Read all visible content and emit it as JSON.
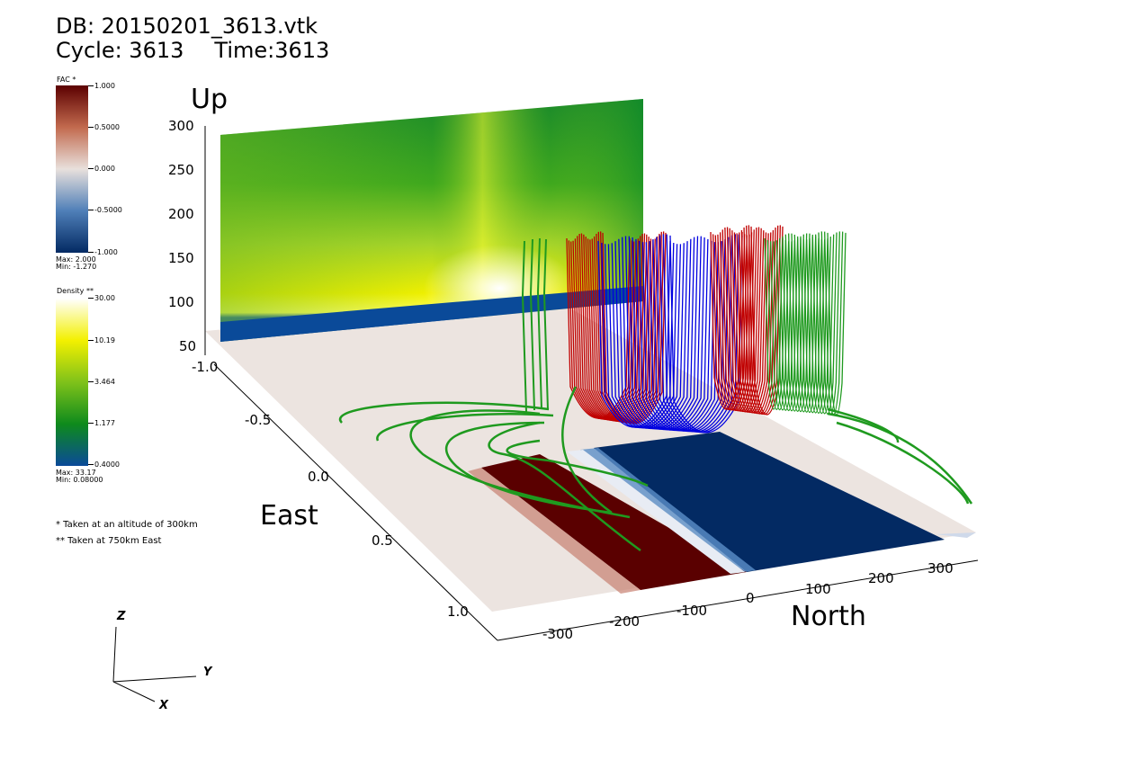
{
  "header": {
    "db": "DB: 20150201_3613.vtk",
    "cycle": "Cycle: 3613",
    "time": "Time:3613"
  },
  "legend_fac": {
    "title": "FAC *",
    "ticks": [
      "1.000",
      "0.5000",
      "0.000",
      "-0.5000",
      "-1.000"
    ],
    "max": "Max:  2.000",
    "min": "Min:  -1.270",
    "colors": [
      "#5c0000",
      "#c26a4e",
      "#e8e0dc",
      "#4f7fb8",
      "#032a63"
    ]
  },
  "legend_density": {
    "title": "Density **",
    "ticks": [
      "30.00",
      "10.19",
      "3.464",
      "1.177",
      "0.4000"
    ],
    "max": "Max:  33.17",
    "min": "Min:  0.08000",
    "colors": [
      "#ffffff",
      "#f3f000",
      "#7fc21a",
      "#0e8a1c",
      "#0a4a99"
    ]
  },
  "notes": [
    "* Taken at an altitude of 300km",
    "** Taken at 750km East"
  ],
  "axes": {
    "up_label": "Up",
    "up_ticks": [
      "300",
      "250",
      "200",
      "150",
      "100",
      "50"
    ],
    "east_label": "East",
    "east_ticks": [
      "-1.0",
      "-0.5",
      "0.0",
      "0.5",
      "1.0"
    ],
    "north_label": "North",
    "north_ticks": [
      "-300",
      "-200",
      "-100",
      "0",
      "100",
      "200",
      "300"
    ]
  },
  "triad": {
    "z": "Z",
    "y": "Y",
    "x": "X"
  },
  "colors": {
    "field_line_green": "#1f9a1f",
    "field_line_red": "#c00000",
    "field_line_blue": "#0000e0",
    "floor": "#ece4e0"
  }
}
